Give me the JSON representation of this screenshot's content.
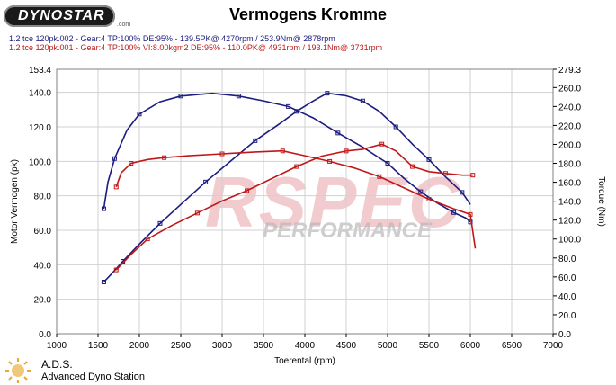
{
  "header": {
    "brand": "DYNOSTAR",
    "brand_suffix": ".com",
    "title": "Vermogens Kromme",
    "legend_lines": [
      "1.2 tce 120pk.002 - Gear:4 TP:100% DE:95%   - 139.5PK@ 4270rpm / 253.9Nm@ 2878rpm",
      "1.2 tce 120pk.001 - Gear:4 TP:100% VI:8.00kgm2 DE:95%   - 110.0PK@ 4931rpm / 193.1Nm@ 3731rpm"
    ]
  },
  "watermark": {
    "big": "RSPEC",
    "small": "PERFORMANCE"
  },
  "footer": {
    "name": "A.D.S.",
    "subtitle": "Advanced Dyno Station"
  },
  "colors": {
    "run_002": "#1c1c80",
    "run_001": "#c01818",
    "grid": "#d0d0d0",
    "watermark": "#e8a0a8"
  },
  "chart_data": {
    "type": "line",
    "xlabel": "Toerental (rpm)",
    "ylabel_left": "Motor Vermogen (pk)",
    "ylabel_right": "Torque (Nm)",
    "xlim": [
      1000,
      7000
    ],
    "ylim_left": [
      0,
      153.4
    ],
    "ylim_right": [
      0,
      279.3
    ],
    "x_ticks": [
      "1000",
      "1500",
      "2000",
      "2500",
      "3000",
      "3500",
      "4000",
      "4500",
      "5000",
      "5500",
      "6000",
      "6500",
      "7000"
    ],
    "y_ticks_left": [
      {
        "v": 0,
        "label": "0.0"
      },
      {
        "v": 20,
        "label": "20.0"
      },
      {
        "v": 40,
        "label": "40.0"
      },
      {
        "v": 60,
        "label": "60.0"
      },
      {
        "v": 80,
        "label": "80.0"
      },
      {
        "v": 100,
        "label": "100.0"
      },
      {
        "v": 120,
        "label": "120.0"
      },
      {
        "v": 140,
        "label": "140.0"
      },
      {
        "v": 153.4,
        "label": "153.4"
      }
    ],
    "y_ticks_right": [
      {
        "v": 0,
        "label": "0.0"
      },
      {
        "v": 20,
        "label": "20.0"
      },
      {
        "v": 40,
        "label": "40.0"
      },
      {
        "v": 60,
        "label": "60.0"
      },
      {
        "v": 80,
        "label": "80.0"
      },
      {
        "v": 100,
        "label": "100.0"
      },
      {
        "v": 120,
        "label": "120.0"
      },
      {
        "v": 140,
        "label": "140.0"
      },
      {
        "v": 160,
        "label": "160.0"
      },
      {
        "v": 180,
        "label": "180.0"
      },
      {
        "v": 200,
        "label": "200.0"
      },
      {
        "v": 220,
        "label": "220.0"
      },
      {
        "v": 240,
        "label": "240.0"
      },
      {
        "v": 260,
        "label": "260.0"
      },
      {
        "v": 279.3,
        "label": "279.3"
      }
    ],
    "series": [
      {
        "name": "1.2 tce 120pk.002 power",
        "axis": "left",
        "color": "#1c1c80",
        "x": [
          1570,
          1650,
          1800,
          2000,
          2250,
          2500,
          2800,
          3100,
          3400,
          3700,
          3900,
          4100,
          4270,
          4500,
          4700,
          4900,
          5100,
          5300,
          5500,
          5700,
          5900,
          6000
        ],
        "y": [
          30,
          34,
          42,
          52,
          64,
          75,
          88,
          100,
          112,
          122,
          129,
          135,
          139.5,
          138,
          135,
          129,
          120,
          110,
          101,
          91,
          82,
          75
        ]
      },
      {
        "name": "1.2 tce 120pk.002 torque",
        "axis": "right",
        "color": "#1c1c80",
        "x": [
          1570,
          1620,
          1700,
          1850,
          2000,
          2250,
          2500,
          2878,
          3200,
          3500,
          3800,
          4100,
          4400,
          4700,
          5000,
          5200,
          5400,
          5600,
          5800,
          5950,
          6000
        ],
        "y": [
          132,
          160,
          185,
          215,
          232,
          245,
          251,
          253.9,
          251,
          246,
          240,
          228,
          212,
          197,
          180,
          164,
          150,
          138,
          128,
          122,
          118
        ]
      },
      {
        "name": "1.2 tce 120pk.001 power",
        "axis": "left",
        "color": "#c01818",
        "x": [
          1720,
          1900,
          2100,
          2400,
          2700,
          3000,
          3300,
          3600,
          3900,
          4200,
          4500,
          4700,
          4931,
          5100,
          5300,
          5500,
          5700,
          5900,
          6030
        ],
        "y": [
          37,
          46,
          55,
          63,
          70,
          77,
          83,
          90,
          97,
          103,
          106,
          107,
          110,
          106,
          97,
          94,
          93,
          92,
          92
        ]
      },
      {
        "name": "1.2 tce 120pk.001 torque",
        "axis": "right",
        "color": "#c01818",
        "x": [
          1720,
          1780,
          1900,
          2100,
          2300,
          2600,
          3000,
          3400,
          3731,
          4000,
          4300,
          4600,
          4900,
          5200,
          5500,
          5800,
          6000,
          6060
        ],
        "y": [
          155,
          170,
          180,
          184,
          186,
          188,
          190,
          192,
          193.1,
          188,
          182,
          175,
          166,
          154,
          142,
          132,
          126,
          90
        ]
      }
    ]
  }
}
